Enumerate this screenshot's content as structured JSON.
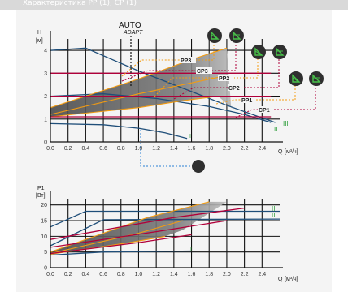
{
  "header": {
    "text": "Характеристика PP (1), CP (1)"
  },
  "auto_label": {
    "main": "AUTO",
    "sub": "ADAPT"
  },
  "top_chart": {
    "ylabel": "H",
    "yunit": "[м]",
    "xlabel": "Q",
    "xunit": "[м³/ч]",
    "yticks": [
      "0",
      "1",
      "2",
      "3",
      "4"
    ],
    "xticks": [
      "0.0",
      "0.2",
      "0.4",
      "0.6",
      "0.8",
      "1.0",
      "1.2",
      "1.4",
      "1.6",
      "1.8",
      "2.0",
      "2.2",
      "2.4"
    ],
    "speed_labels": [
      "I",
      "II",
      "III"
    ],
    "callouts": [
      "PP3",
      "CP3",
      "PP2",
      "CP2",
      "PP1",
      "CP1"
    ]
  },
  "bottom_chart": {
    "ylabel": "P1",
    "yunit": "[Вт]",
    "xlabel": "Q",
    "xunit": "[м³/ч]",
    "yticks": [
      "0",
      "5",
      "10",
      "15",
      "20"
    ],
    "xticks": [
      "0.0",
      "0.2",
      "0.4",
      "0.6",
      "0.8",
      "1.0",
      "1.2",
      "1.4",
      "1.6",
      "1.8",
      "2.0",
      "2.2",
      "2.4"
    ],
    "speed_labels": [
      "I",
      "II",
      "III"
    ]
  },
  "colors": {
    "speed_curve": "#1f4e79",
    "pp_curve": "#f39c12",
    "cp_curve": "#b0003a",
    "speed_label": "#2e9e3a",
    "icon_bg": "#2f2f2f",
    "icon_fg": "#48c24a",
    "leader_blue": "#2a7fd4"
  },
  "chart_data": [
    {
      "type": "line",
      "title": "",
      "xlabel": "Q [м³/ч]",
      "ylabel": "H [м]",
      "xlim": [
        0,
        2.6
      ],
      "ylim": [
        0,
        4.5
      ],
      "series": [
        {
          "name": "III",
          "x": [
            0,
            0.4,
            1.0,
            1.6,
            2.0,
            2.4,
            2.55
          ],
          "y": [
            4.0,
            4.1,
            3.1,
            2.2,
            1.6,
            1.05,
            0.85
          ]
        },
        {
          "name": "II",
          "x": [
            0,
            0.6,
            1.2,
            1.8,
            2.2,
            2.5
          ],
          "y": [
            2.0,
            2.1,
            1.9,
            1.55,
            1.2,
            0.85
          ]
        },
        {
          "name": "I",
          "x": [
            0,
            0.6,
            1.0,
            1.3,
            1.55
          ],
          "y": [
            0.8,
            0.75,
            0.6,
            0.4,
            0.15
          ]
        },
        {
          "name": "PP3",
          "x": [
            0,
            1.0,
            1.6,
            2.0
          ],
          "y": [
            1.5,
            2.75,
            3.6,
            4.1
          ]
        },
        {
          "name": "PP2",
          "x": [
            0,
            1.0,
            1.5,
            2.0
          ],
          "y": [
            1.2,
            2.1,
            2.5,
            2.9
          ]
        },
        {
          "name": "PP1",
          "x": [
            0,
            1.0,
            1.5,
            1.9
          ],
          "y": [
            1.1,
            1.5,
            1.8,
            2.0
          ]
        },
        {
          "name": "CP3",
          "x": [
            0,
            2.5
          ],
          "y": [
            3.0,
            3.0
          ]
        },
        {
          "name": "CP2",
          "x": [
            0,
            2.5
          ],
          "y": [
            2.0,
            2.0
          ]
        },
        {
          "name": "CP1",
          "x": [
            0,
            2.5
          ],
          "y": [
            1.1,
            1.1
          ]
        }
      ]
    },
    {
      "type": "line",
      "title": "",
      "xlabel": "Q [м³/ч]",
      "ylabel": "P1 [Вт]",
      "xlim": [
        0,
        2.6
      ],
      "ylim": [
        0,
        22
      ],
      "series": [
        {
          "name": "III",
          "x": [
            0,
            0.4,
            2.6
          ],
          "y": [
            13,
            18,
            18
          ]
        },
        {
          "name": "II",
          "x": [
            0,
            0.6,
            2.6
          ],
          "y": [
            7,
            15.3,
            15.5
          ]
        },
        {
          "name": "I",
          "x": [
            0,
            0.6,
            1.6
          ],
          "y": [
            4.0,
            5.0,
            5.3
          ]
        },
        {
          "name": "PP3",
          "x": [
            0,
            1.1,
            1.8
          ],
          "y": [
            5,
            16,
            21
          ]
        },
        {
          "name": "CP3",
          "x": [
            0,
            1.4,
            2.2
          ],
          "y": [
            9,
            16,
            19
          ]
        },
        {
          "name": "PP2",
          "x": [
            0,
            1.0,
            1.5
          ],
          "y": [
            4.5,
            11,
            15
          ]
        },
        {
          "name": "CP2",
          "x": [
            0,
            1.2,
            2.0
          ],
          "y": [
            6.5,
            11.5,
            15
          ]
        },
        {
          "name": "PP1",
          "x": [
            0,
            0.9,
            1.3
          ],
          "y": [
            4.3,
            8,
            10
          ]
        },
        {
          "name": "CP1",
          "x": [
            0,
            1.0,
            1.6
          ],
          "y": [
            4.5,
            8,
            10.5
          ]
        }
      ]
    }
  ]
}
